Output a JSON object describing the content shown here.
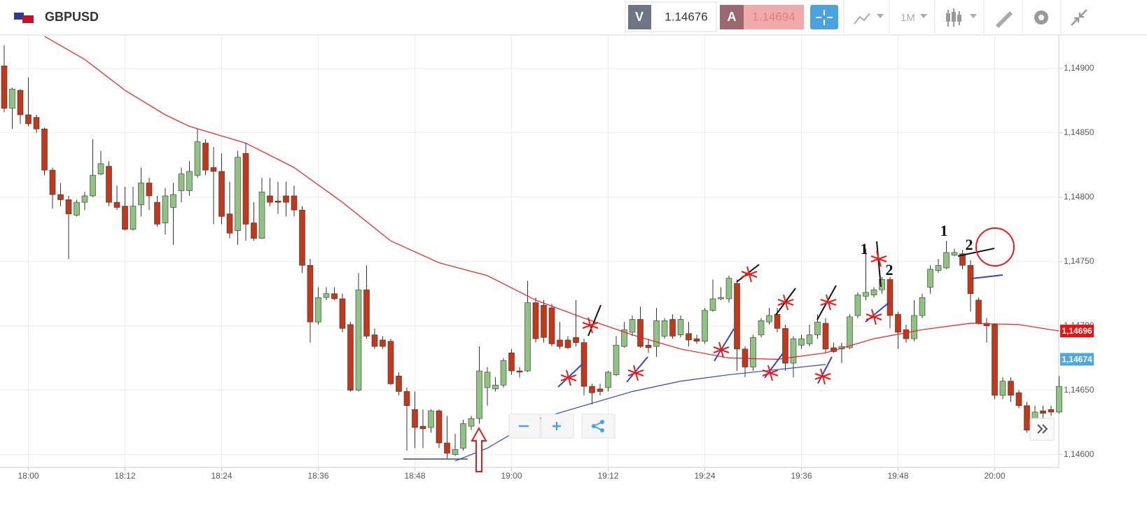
{
  "header": {
    "symbol": "GBPUSD",
    "bid_label": "V",
    "bid": "1.14676",
    "ask_label": "A",
    "ask": "1.14694",
    "timeframe": "1M"
  },
  "chart_data": {
    "type": "candlestick",
    "x": [
      "17:57",
      "17:58",
      "17:59",
      "18:00",
      "18:01",
      "18:02",
      "18:03",
      "18:04",
      "18:05",
      "18:06",
      "18:07",
      "18:08",
      "18:09",
      "18:10",
      "18:11",
      "18:12",
      "18:13",
      "18:14",
      "18:15",
      "18:16",
      "18:17",
      "18:18",
      "18:19",
      "18:20",
      "18:21",
      "18:22",
      "18:23",
      "18:24",
      "18:25",
      "18:26",
      "18:27",
      "18:28",
      "18:29",
      "18:30",
      "18:31",
      "18:32",
      "18:33",
      "18:34",
      "18:35",
      "18:36",
      "18:37",
      "18:38",
      "18:39",
      "18:40",
      "18:41",
      "18:42",
      "18:43",
      "18:44",
      "18:45",
      "18:46",
      "18:47",
      "18:48",
      "18:49",
      "18:50",
      "18:51",
      "18:52",
      "18:53",
      "18:54",
      "18:55",
      "18:56",
      "18:57",
      "18:58",
      "18:59",
      "19:00",
      "19:01",
      "19:02",
      "19:03",
      "19:04",
      "19:05",
      "19:06",
      "19:07",
      "19:08",
      "19:09",
      "19:10",
      "19:11",
      "19:12",
      "19:13",
      "19:14",
      "19:15",
      "19:16",
      "19:17",
      "19:18",
      "19:19",
      "19:20",
      "19:21",
      "19:22",
      "19:23",
      "19:24",
      "19:25",
      "19:26",
      "19:27",
      "19:28",
      "19:29",
      "19:30",
      "19:31",
      "19:32",
      "19:33",
      "19:34",
      "19:35",
      "19:36",
      "19:37",
      "19:38",
      "19:39",
      "19:40",
      "19:41",
      "19:42",
      "19:43",
      "19:44",
      "19:45",
      "19:46",
      "19:47",
      "19:48",
      "19:49",
      "19:50",
      "19:51",
      "19:52",
      "19:53",
      "19:54",
      "19:55",
      "19:56",
      "19:57",
      "19:58",
      "19:59",
      "20:00",
      "20:01",
      "20:02",
      "20:03",
      "20:04",
      "20:05",
      "20:06",
      "20:07",
      "20:08"
    ],
    "ohlc": [
      [
        1.14902,
        1.14918,
        1.14866,
        1.14869
      ],
      [
        1.14869,
        1.14885,
        1.14853,
        1.14884
      ],
      [
        1.14883,
        1.14884,
        1.14857,
        1.14864
      ],
      [
        1.14864,
        1.14893,
        1.14855,
        1.14857
      ],
      [
        1.14862,
        1.14864,
        1.1485,
        1.14853
      ],
      [
        1.14853,
        1.14854,
        1.14817,
        1.14821
      ],
      [
        1.14821,
        1.14823,
        1.14791,
        1.14802
      ],
      [
        1.14802,
        1.14811,
        1.14793,
        1.14798
      ],
      [
        1.14798,
        1.14801,
        1.14752,
        1.14787
      ],
      [
        1.14786,
        1.14798,
        1.14785,
        1.14796
      ],
      [
        1.14796,
        1.14804,
        1.1479,
        1.14801
      ],
      [
        1.14801,
        1.14845,
        1.148,
        1.14817
      ],
      [
        1.14818,
        1.14836,
        1.14817,
        1.14826
      ],
      [
        1.14824,
        1.14828,
        1.14793,
        1.14796
      ],
      [
        1.14796,
        1.14809,
        1.1479,
        1.14792
      ],
      [
        1.14793,
        1.14808,
        1.14774,
        1.14775
      ],
      [
        1.14775,
        1.14808,
        1.14774,
        1.14793
      ],
      [
        1.14794,
        1.14823,
        1.14785,
        1.14811
      ],
      [
        1.14811,
        1.14815,
        1.1479,
        1.14801
      ],
      [
        1.14796,
        1.14801,
        1.14777,
        1.14779
      ],
      [
        1.1478,
        1.14807,
        1.14771,
        1.14801
      ],
      [
        1.14792,
        1.14811,
        1.14763,
        1.14802
      ],
      [
        1.14805,
        1.14823,
        1.14796,
        1.14818
      ],
      [
        1.14805,
        1.14828,
        1.14801,
        1.1482
      ],
      [
        1.14817,
        1.14853,
        1.14815,
        1.14843
      ],
      [
        1.14842,
        1.14845,
        1.14817,
        1.14821
      ],
      [
        1.14823,
        1.14839,
        1.14779,
        1.1482
      ],
      [
        1.1482,
        1.14834,
        1.14779,
        1.14785
      ],
      [
        1.14787,
        1.14812,
        1.14768,
        1.14772
      ],
      [
        1.14774,
        1.14836,
        1.14763,
        1.14831
      ],
      [
        1.14834,
        1.14842,
        1.14766,
        1.14779
      ],
      [
        1.1478,
        1.14796,
        1.14766,
        1.14768
      ],
      [
        1.14768,
        1.14815,
        1.14768,
        1.14804
      ],
      [
        1.14801,
        1.14815,
        1.14793,
        1.14796
      ],
      [
        1.14797,
        1.14812,
        1.14787,
        1.14796
      ],
      [
        1.14801,
        1.14812,
        1.14785,
        1.14796
      ],
      [
        1.14801,
        1.14809,
        1.14785,
        1.1479
      ],
      [
        1.1479,
        1.14793,
        1.14741,
        1.14747
      ],
      [
        1.14747,
        1.14752,
        1.14687,
        1.14703
      ],
      [
        1.14703,
        1.1473,
        1.14701,
        1.14722
      ],
      [
        1.14722,
        1.1473,
        1.1472,
        1.14725
      ],
      [
        1.14725,
        1.1473,
        1.1472,
        1.14721
      ],
      [
        1.14721,
        1.14725,
        1.14695,
        1.14698
      ],
      [
        1.14701,
        1.14703,
        1.14649,
        1.1465
      ],
      [
        1.1465,
        1.14741,
        1.14649,
        1.14728
      ],
      [
        1.14728,
        1.14747,
        1.1469,
        1.14692
      ],
      [
        1.14693,
        1.14698,
        1.14682,
        1.14684
      ],
      [
        1.14689,
        1.14692,
        1.14682,
        1.14684
      ],
      [
        1.14688,
        1.1469,
        1.14654,
        1.14655
      ],
      [
        1.14661,
        1.14664,
        1.14646,
        1.14649
      ],
      [
        1.14649,
        1.14652,
        1.14603,
        1.14638
      ],
      [
        1.14635,
        1.14649,
        1.14605,
        1.14621
      ],
      [
        1.14622,
        1.14635,
        1.14605,
        1.1462
      ],
      [
        1.14621,
        1.14635,
        1.14617,
        1.14634
      ],
      [
        1.14634,
        1.14635,
        1.14605,
        1.14609
      ],
      [
        1.14609,
        1.1463,
        1.14597,
        1.14601
      ],
      [
        1.146,
        1.14616,
        1.14599,
        1.14604
      ],
      [
        1.14605,
        1.14627,
        1.14603,
        1.14624
      ],
      [
        1.14622,
        1.1463,
        1.14619,
        1.14628
      ],
      [
        1.14628,
        1.14684,
        1.14624,
        1.14665
      ],
      [
        1.14652,
        1.14668,
        1.14638,
        1.14664
      ],
      [
        1.14651,
        1.1466,
        1.14649,
        1.14654
      ],
      [
        1.14654,
        1.14675,
        1.14652,
        1.14673
      ],
      [
        1.14679,
        1.14682,
        1.14662,
        1.14665
      ],
      [
        1.14665,
        1.14668,
        1.1466,
        1.14664
      ],
      [
        1.14665,
        1.14735,
        1.14664,
        1.14718
      ],
      [
        1.14718,
        1.14722,
        1.14687,
        1.1469
      ],
      [
        1.14716,
        1.1472,
        1.14687,
        1.14691
      ],
      [
        1.14714,
        1.14717,
        1.14684,
        1.14686
      ],
      [
        1.14689,
        1.14703,
        1.14682,
        1.14684
      ],
      [
        1.14689,
        1.14692,
        1.14682,
        1.14683
      ],
      [
        1.14691,
        1.1472,
        1.14684,
        1.14687
      ],
      [
        1.14687,
        1.1469,
        1.14646,
        1.14653
      ],
      [
        1.14653,
        1.14655,
        1.14639,
        1.14648
      ],
      [
        1.14651,
        1.14655,
        1.14646,
        1.14649
      ],
      [
        1.14652,
        1.14665,
        1.14649,
        1.14664
      ],
      [
        1.14662,
        1.14692,
        1.14661,
        1.14685
      ],
      [
        1.14684,
        1.14703,
        1.14683,
        1.14697
      ],
      [
        1.14695,
        1.14708,
        1.14692,
        1.14705
      ],
      [
        1.14705,
        1.14715,
        1.14683,
        1.14684
      ],
      [
        1.14685,
        1.1469,
        1.14679,
        1.14683
      ],
      [
        1.14684,
        1.14714,
        1.14676,
        1.14704
      ],
      [
        1.14692,
        1.14706,
        1.1469,
        1.14704
      ],
      [
        1.14705,
        1.14709,
        1.1469,
        1.14692
      ],
      [
        1.14693,
        1.14708,
        1.14691,
        1.14705
      ],
      [
        1.14694,
        1.14703,
        1.14684,
        1.14689
      ],
      [
        1.1469,
        1.14693,
        1.14686,
        1.14688
      ],
      [
        1.14688,
        1.14714,
        1.14686,
        1.14712
      ],
      [
        1.14712,
        1.14736,
        1.14711,
        1.14721
      ],
      [
        1.14721,
        1.1473,
        1.1472,
        1.14722
      ],
      [
        1.14721,
        1.14739,
        1.14718,
        1.14737
      ],
      [
        1.14733,
        1.14736,
        1.14665,
        1.14682
      ],
      [
        1.14682,
        1.14684,
        1.1466,
        1.14668
      ],
      [
        1.14668,
        1.14693,
        1.14665,
        1.14691
      ],
      [
        1.14693,
        1.14706,
        1.14691,
        1.14704
      ],
      [
        1.14703,
        1.14714,
        1.14701,
        1.14708
      ],
      [
        1.14709,
        1.14714,
        1.14695,
        1.14698
      ],
      [
        1.14698,
        1.14701,
        1.14665,
        1.14671
      ],
      [
        1.14671,
        1.14692,
        1.1466,
        1.1469
      ],
      [
        1.14685,
        1.14693,
        1.14682,
        1.1469
      ],
      [
        1.14686,
        1.14701,
        1.14684,
        1.14693
      ],
      [
        1.14693,
        1.14709,
        1.1469,
        1.14703
      ],
      [
        1.14702,
        1.14706,
        1.14679,
        1.14682
      ],
      [
        1.14683,
        1.14687,
        1.14679,
        1.1468
      ],
      [
        1.14682,
        1.14687,
        1.14671,
        1.14684
      ],
      [
        1.14683,
        1.14709,
        1.14682,
        1.14707
      ],
      [
        1.14708,
        1.14726,
        1.14706,
        1.14724
      ],
      [
        1.14723,
        1.1476,
        1.1472,
        1.14726
      ],
      [
        1.14724,
        1.1473,
        1.14722,
        1.14728
      ],
      [
        1.14728,
        1.14738,
        1.14725,
        1.14736
      ],
      [
        1.14736,
        1.14738,
        1.14698,
        1.14708
      ],
      [
        1.14709,
        1.14711,
        1.14682,
        1.14695
      ],
      [
        1.14697,
        1.14701,
        1.14687,
        1.1469
      ],
      [
        1.1469,
        1.1472,
        1.14688,
        1.14708
      ],
      [
        1.14708,
        1.14725,
        1.14706,
        1.14722
      ],
      [
        1.1473,
        1.14747,
        1.14725,
        1.14744
      ],
      [
        1.14743,
        1.14752,
        1.14741,
        1.14747
      ],
      [
        1.14745,
        1.14766,
        1.14744,
        1.14757
      ],
      [
        1.14755,
        1.1476,
        1.14754,
        1.14757
      ],
      [
        1.14756,
        1.14759,
        1.14744,
        1.14747
      ],
      [
        1.14747,
        1.14751,
        1.14711,
        1.14725
      ],
      [
        1.1472,
        1.14722,
        1.14701,
        1.14702
      ],
      [
        1.14702,
        1.14706,
        1.14687,
        1.147
      ],
      [
        1.14701,
        1.14702,
        1.14643,
        1.14646
      ],
      [
        1.14646,
        1.1466,
        1.14643,
        1.14657
      ],
      [
        1.14657,
        1.1466,
        1.14641,
        1.14646
      ],
      [
        1.14648,
        1.1465,
        1.14636,
        1.14638
      ],
      [
        1.14638,
        1.14641,
        1.14617,
        1.14619
      ],
      [
        1.14627,
        1.14638,
        1.14624,
        1.14633
      ],
      [
        1.14634,
        1.14638,
        1.14627,
        1.14632
      ],
      [
        1.14635,
        1.14638,
        1.1463,
        1.14633
      ],
      [
        1.14633,
        1.14661,
        1.14632,
        1.14653
      ]
    ],
    "up_color": "#8fc283",
    "down_color": "#c2381b",
    "lines": [
      {
        "color": "#ee1c1c",
        "x": [
          "18:02",
          "18:07",
          "18:12",
          "18:17",
          "18:20",
          "18:27",
          "18:33",
          "18:39",
          "18:45",
          "18:51",
          "18:57",
          "19:03",
          "19:09",
          "19:15",
          "19:21",
          "19:27",
          "19:33",
          "19:39",
          "19:45",
          "19:51",
          "19:57",
          "20:03",
          "20:08"
        ],
        "values": [
          1.14925,
          1.14907,
          1.14883,
          1.14864,
          1.14855,
          1.14842,
          1.14823,
          1.14796,
          1.14766,
          1.14749,
          1.14739,
          1.1472,
          1.14706,
          1.14693,
          1.14682,
          1.14675,
          1.14674,
          1.14679,
          1.1469,
          1.14697,
          1.14702,
          1.14701,
          1.14696
        ]
      },
      {
        "color": "#3344cc",
        "x": [
          "18:53",
          "18:57",
          "19:03",
          "19:09",
          "19:15",
          "19:21",
          "19:27",
          "19:33",
          "19:39"
        ],
        "values": [
          1.14595,
          1.14605,
          1.14627,
          1.14638,
          1.14649,
          1.14657,
          1.14662,
          1.14666,
          1.1467
        ]
      }
    ],
    "ylim": [
      1.1459,
      1.14926
    ],
    "yticks": [
      {
        "value": 1.146,
        "label": "1,14600"
      },
      {
        "value": 1.1465,
        "label": "1,14650"
      },
      {
        "value": 1.147,
        "label": "1,14700"
      },
      {
        "value": 1.1475,
        "label": "1,14750"
      },
      {
        "value": 1.148,
        "label": "1,14800"
      },
      {
        "value": 1.1485,
        "label": "1,14850"
      },
      {
        "value": 1.149,
        "label": "1,14900"
      }
    ],
    "xticks": [
      "18:00",
      "18:12",
      "18:24",
      "18:36",
      "18:48",
      "19:00",
      "19:12",
      "19:24",
      "19:36",
      "19:48",
      "20:00"
    ],
    "grid": true,
    "price_tags": [
      {
        "value": 1.14696,
        "label": "1,14696",
        "color": "#ee1111"
      },
      {
        "value": 1.14674,
        "label": "1,14674",
        "color": "#4fa7de"
      }
    ],
    "annotations": [
      "1",
      "2",
      "1",
      "2"
    ]
  }
}
